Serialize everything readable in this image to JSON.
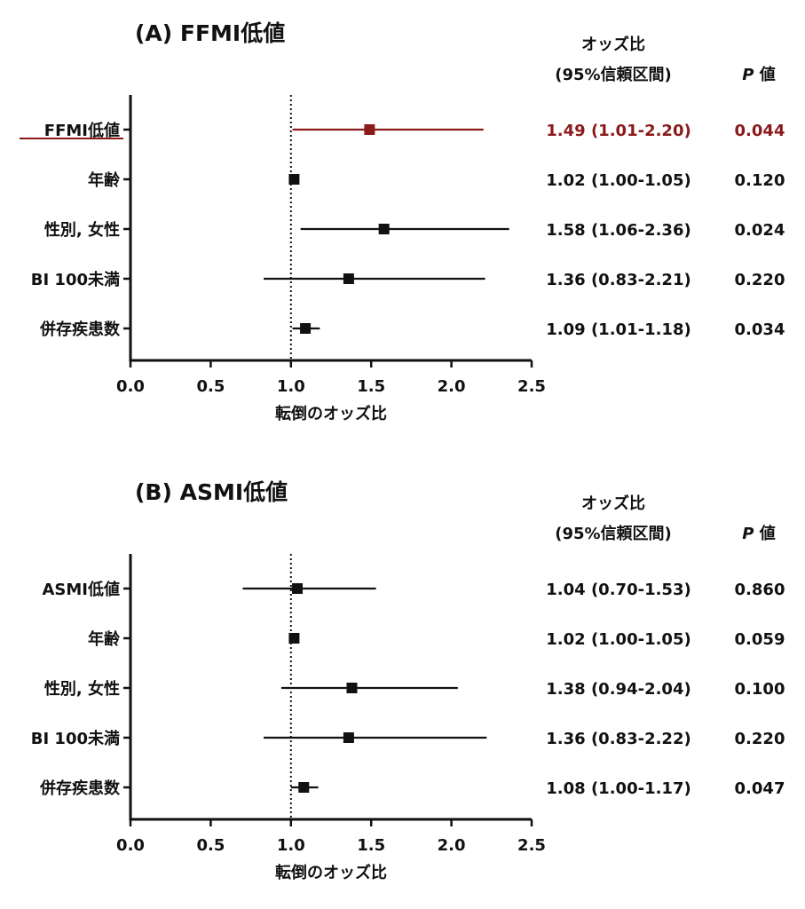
{
  "colors": {
    "highlight": "#8b1a1a",
    "ink": "#111111"
  },
  "chart_data": [
    {
      "type": "forest",
      "title": "(A) FFMI低値",
      "xlabel": "転倒のオッズ比",
      "xlim": [
        0.0,
        2.5
      ],
      "xticks": [
        "0.0",
        "0.5",
        "1.0",
        "1.5",
        "2.0",
        "2.5"
      ],
      "reference_line": 1.0,
      "or_header": "オッズ比",
      "ci_header": "(95%信頼区間)",
      "p_header_letter": "P",
      "p_header_suffix": " 値",
      "rows": [
        {
          "label": "FFMI低値",
          "or": 1.49,
          "lo": 1.01,
          "hi": 2.2,
          "text": "1.49 (1.01-2.20)",
          "p": "0.044",
          "highlight": true
        },
        {
          "label": "年齢",
          "or": 1.02,
          "lo": 1.0,
          "hi": 1.05,
          "text": "1.02 (1.00-1.05)",
          "p": "0.120",
          "highlight": false
        },
        {
          "label": "性別, 女性",
          "or": 1.58,
          "lo": 1.06,
          "hi": 2.36,
          "text": "1.58 (1.06-2.36)",
          "p": "0.024",
          "highlight": false
        },
        {
          "label": "BI  100未満",
          "or": 1.36,
          "lo": 0.83,
          "hi": 2.21,
          "text": "1.36 (0.83-2.21)",
          "p": "0.220",
          "highlight": false
        },
        {
          "label": "併存疾患数",
          "or": 1.09,
          "lo": 1.01,
          "hi": 1.18,
          "text": "1.09 (1.01-1.18)",
          "p": "0.034",
          "highlight": false
        }
      ]
    },
    {
      "type": "forest",
      "title": "(B) ASMI低値",
      "xlabel": "転倒のオッズ比",
      "xlim": [
        0.0,
        2.5
      ],
      "xticks": [
        "0.0",
        "0.5",
        "1.0",
        "1.5",
        "2.0",
        "2.5"
      ],
      "reference_line": 1.0,
      "or_header": "オッズ比",
      "ci_header": "(95%信頼区間)",
      "p_header_letter": "P",
      "p_header_suffix": " 値",
      "rows": [
        {
          "label": "ASMI低値",
          "or": 1.04,
          "lo": 0.7,
          "hi": 1.53,
          "text": "1.04 (0.70-1.53)",
          "p": "0.860",
          "highlight": false
        },
        {
          "label": "年齢",
          "or": 1.02,
          "lo": 1.0,
          "hi": 1.05,
          "text": "1.02 (1.00-1.05)",
          "p": "0.059",
          "highlight": false
        },
        {
          "label": "性別, 女性",
          "or": 1.38,
          "lo": 0.94,
          "hi": 2.04,
          "text": "1.38 (0.94-2.04)",
          "p": "0.100",
          "highlight": false
        },
        {
          "label": "BI  100未満",
          "or": 1.36,
          "lo": 0.83,
          "hi": 2.22,
          "text": "1.36 (0.83-2.22)",
          "p": "0.220",
          "highlight": false
        },
        {
          "label": "併存疾患数",
          "or": 1.08,
          "lo": 1.0,
          "hi": 1.17,
          "text": "1.08 (1.00-1.17)",
          "p": "0.047",
          "highlight": false
        }
      ]
    }
  ]
}
